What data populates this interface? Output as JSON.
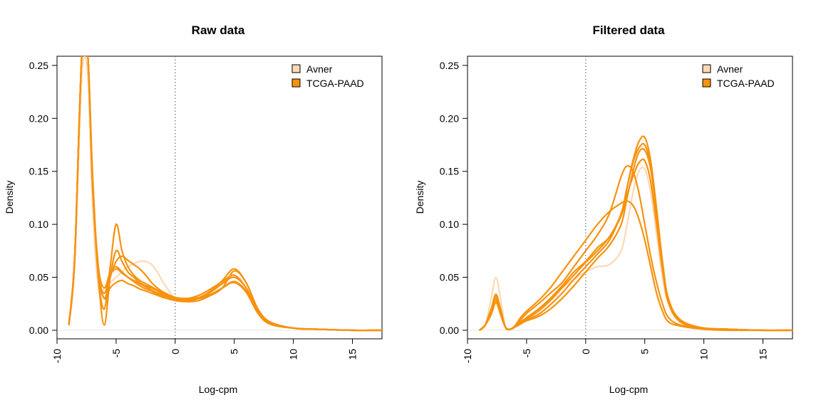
{
  "chart_data": [
    {
      "type": "line",
      "title": "Raw data",
      "xlabel": "Log-cpm",
      "ylabel": "Density",
      "xlim": [
        -10,
        17.5
      ],
      "ylim": [
        0,
        0.26
      ],
      "xticks": [
        -10,
        -5,
        0,
        5,
        10,
        15
      ],
      "yticks": [
        0.0,
        0.05,
        0.1,
        0.15,
        0.2,
        0.25
      ],
      "ytick_labels": [
        "0.00",
        "0.05",
        "0.10",
        "0.15",
        "0.20",
        "0.25"
      ],
      "xtick_labels": [
        "-10",
        "-5",
        "0",
        "5",
        "10",
        "15"
      ],
      "vline_x": 0,
      "legend": [
        {
          "name": "Avner",
          "color": "#FDD9B5"
        },
        {
          "name": "TCGA-PAAD",
          "color": "#F7920F"
        }
      ],
      "legend_position": "top-right",
      "series": [
        {
          "name": "Avner",
          "color": "#FDD9B5",
          "x": [
            -9,
            -8.5,
            -7.9,
            -7.4,
            -7,
            -6.5,
            -6,
            -5.5,
            -5,
            -4.5,
            -4,
            -3.5,
            -3,
            -2.5,
            -2,
            -1.5,
            -1,
            0,
            1,
            2,
            3,
            4,
            5,
            6,
            7,
            8,
            10,
            12,
            15,
            17.5
          ],
          "y": [
            0.005,
            0.06,
            0.24,
            0.24,
            0.12,
            0.04,
            0.04,
            0.045,
            0.05,
            0.055,
            0.06,
            0.063,
            0.065,
            0.065,
            0.062,
            0.055,
            0.045,
            0.03,
            0.028,
            0.03,
            0.038,
            0.045,
            0.05,
            0.04,
            0.018,
            0.007,
            0.002,
            0.001,
            0.0,
            0.0
          ]
        },
        {
          "name": "TCGA-PAAD",
          "color": "#F7920F",
          "x": [
            -9,
            -8.5,
            -7.9,
            -7.4,
            -7,
            -6.5,
            -6,
            -5.5,
            -5,
            -4.5,
            -4,
            -3.5,
            -3,
            -2.5,
            -2,
            -1.5,
            -1,
            0,
            1,
            2,
            3,
            4,
            5,
            6,
            7,
            8,
            10,
            12,
            15,
            17.5
          ],
          "y": [
            0.005,
            0.07,
            0.26,
            0.26,
            0.15,
            0.05,
            0.005,
            0.05,
            0.075,
            0.065,
            0.055,
            0.05,
            0.045,
            0.042,
            0.04,
            0.037,
            0.034,
            0.03,
            0.029,
            0.031,
            0.037,
            0.047,
            0.058,
            0.045,
            0.02,
            0.008,
            0.002,
            0.001,
            0.0,
            0.0
          ]
        },
        {
          "name": "TCGA-PAAD",
          "color": "#F7920F",
          "x": [
            -9,
            -8.5,
            -7.9,
            -7.4,
            -7,
            -6.5,
            -6,
            -5.5,
            -5,
            -4.5,
            -4,
            -3.5,
            -3,
            -2.5,
            -2,
            -1.5,
            -1,
            0,
            1,
            2,
            3,
            4,
            5,
            6,
            7,
            8,
            10,
            12,
            15,
            17.5
          ],
          "y": [
            0.005,
            0.07,
            0.26,
            0.26,
            0.14,
            0.05,
            0.02,
            0.06,
            0.1,
            0.075,
            0.06,
            0.052,
            0.047,
            0.044,
            0.041,
            0.038,
            0.035,
            0.031,
            0.03,
            0.033,
            0.039,
            0.046,
            0.052,
            0.04,
            0.018,
            0.007,
            0.002,
            0.001,
            0.0,
            0.0
          ]
        },
        {
          "name": "TCGA-PAAD",
          "color": "#F7920F",
          "x": [
            -9,
            -8.5,
            -7.9,
            -7.4,
            -7,
            -6.5,
            -6,
            -5.5,
            -5,
            -4.5,
            -4,
            -3.5,
            -3,
            -2.5,
            -2,
            -1.5,
            -1,
            0,
            1,
            2,
            3,
            4,
            5,
            6,
            7,
            8,
            10,
            12,
            15,
            17.5
          ],
          "y": [
            0.005,
            0.07,
            0.26,
            0.26,
            0.14,
            0.06,
            0.04,
            0.055,
            0.06,
            0.055,
            0.05,
            0.046,
            0.042,
            0.039,
            0.037,
            0.034,
            0.032,
            0.029,
            0.028,
            0.03,
            0.036,
            0.044,
            0.05,
            0.04,
            0.018,
            0.007,
            0.002,
            0.001,
            0.0,
            0.0
          ]
        },
        {
          "name": "TCGA-PAAD",
          "color": "#F7920F",
          "x": [
            -9,
            -8.5,
            -7.9,
            -7.4,
            -7,
            -6.5,
            -6,
            -5.5,
            -5,
            -4.5,
            -4,
            -3.5,
            -3,
            -2.5,
            -2,
            -1.5,
            -1,
            0,
            1,
            2,
            3,
            4,
            5,
            6,
            7,
            8,
            10,
            12,
            15,
            17.5
          ],
          "y": [
            0.005,
            0.07,
            0.26,
            0.26,
            0.14,
            0.055,
            0.03,
            0.04,
            0.045,
            0.047,
            0.044,
            0.042,
            0.039,
            0.037,
            0.035,
            0.033,
            0.031,
            0.028,
            0.027,
            0.028,
            0.033,
            0.04,
            0.045,
            0.036,
            0.016,
            0.006,
            0.002,
            0.001,
            0.0,
            0.0
          ]
        },
        {
          "name": "TCGA-PAAD",
          "color": "#F7920F",
          "x": [
            -9,
            -8.5,
            -7.9,
            -7.4,
            -7,
            -6.5,
            -6,
            -5.5,
            -5,
            -4.5,
            -4,
            -3.5,
            -3,
            -2.5,
            -2,
            -1.5,
            -1,
            0,
            1,
            2,
            3,
            4,
            5,
            6,
            7,
            8,
            10,
            12,
            15,
            17.5
          ],
          "y": [
            0.005,
            0.07,
            0.26,
            0.26,
            0.14,
            0.06,
            0.03,
            0.05,
            0.065,
            0.07,
            0.066,
            0.062,
            0.058,
            0.052,
            0.045,
            0.04,
            0.036,
            0.031,
            0.03,
            0.031,
            0.034,
            0.04,
            0.046,
            0.037,
            0.017,
            0.006,
            0.002,
            0.001,
            0.0,
            0.0
          ]
        },
        {
          "name": "TCGA-PAAD",
          "color": "#F7920F",
          "x": [
            -9,
            -8.5,
            -7.9,
            -7.4,
            -7,
            -6.5,
            -6,
            -5.5,
            -5,
            -4.5,
            -4,
            -3.5,
            -3,
            -2.5,
            -2,
            -1.5,
            -1,
            0,
            1,
            2,
            3,
            4,
            5,
            6,
            7,
            8,
            10,
            12,
            15,
            17.5
          ],
          "y": [
            0.005,
            0.07,
            0.26,
            0.26,
            0.14,
            0.055,
            0.035,
            0.052,
            0.058,
            0.054,
            0.05,
            0.047,
            0.044,
            0.041,
            0.038,
            0.035,
            0.033,
            0.03,
            0.029,
            0.03,
            0.033,
            0.04,
            0.056,
            0.045,
            0.02,
            0.008,
            0.002,
            0.001,
            0.0,
            0.0
          ]
        }
      ]
    },
    {
      "type": "line",
      "title": "Filtered data",
      "xlabel": "Log-cpm",
      "ylabel": "Density",
      "xlim": [
        -10,
        17.5
      ],
      "ylim": [
        0,
        0.26
      ],
      "xticks": [
        -10,
        -5,
        0,
        5,
        10,
        15
      ],
      "yticks": [
        0.0,
        0.05,
        0.1,
        0.15,
        0.2,
        0.25
      ],
      "ytick_labels": [
        "0.00",
        "0.05",
        "0.10",
        "0.15",
        "0.20",
        "0.25"
      ],
      "xtick_labels": [
        "-10",
        "-5",
        "0",
        "5",
        "10",
        "15"
      ],
      "vline_x": 0,
      "legend": [
        {
          "name": "Avner",
          "color": "#FDD9B5"
        },
        {
          "name": "TCGA-PAAD",
          "color": "#F7920F"
        }
      ],
      "legend_position": "top-right",
      "series": [
        {
          "name": "Avner",
          "color": "#FDD9B5",
          "x": [
            -9,
            -8.5,
            -8,
            -7.6,
            -7.2,
            -6.8,
            -6.4,
            -6,
            -5.5,
            -5,
            -4,
            -3,
            -2,
            -1,
            0,
            1,
            2,
            3,
            3.5,
            4,
            4.5,
            5,
            5.5,
            6,
            6.5,
            7,
            8,
            10,
            12,
            15,
            17.5
          ],
          "y": [
            0.0,
            0.005,
            0.03,
            0.05,
            0.03,
            0.003,
            0.001,
            0.003,
            0.008,
            0.012,
            0.02,
            0.03,
            0.04,
            0.048,
            0.055,
            0.06,
            0.062,
            0.075,
            0.1,
            0.13,
            0.15,
            0.152,
            0.13,
            0.09,
            0.05,
            0.025,
            0.008,
            0.002,
            0.001,
            0.0,
            0.0
          ]
        },
        {
          "name": "TCGA-PAAD",
          "color": "#F7920F",
          "x": [
            -9,
            -8.5,
            -8,
            -7.6,
            -7.2,
            -6.8,
            -6.4,
            -6,
            -5.5,
            -5,
            -4,
            -3,
            -2,
            -1,
            0,
            1,
            2,
            3,
            3.5,
            4,
            4.5,
            5,
            5.5,
            6,
            6.5,
            7,
            8,
            10,
            12,
            15,
            17.5
          ],
          "y": [
            0.0,
            0.005,
            0.02,
            0.034,
            0.02,
            0.003,
            0.001,
            0.003,
            0.008,
            0.012,
            0.02,
            0.03,
            0.042,
            0.055,
            0.065,
            0.078,
            0.088,
            0.11,
            0.135,
            0.16,
            0.178,
            0.182,
            0.16,
            0.115,
            0.065,
            0.03,
            0.01,
            0.002,
            0.001,
            0.0,
            0.0
          ]
        },
        {
          "name": "TCGA-PAAD",
          "color": "#F7920F",
          "x": [
            -9,
            -8.5,
            -8,
            -7.6,
            -7.2,
            -6.8,
            -6.4,
            -6,
            -5.5,
            -5,
            -4,
            -3,
            -2,
            -1,
            0,
            1,
            2,
            3,
            3.5,
            4,
            4.5,
            5,
            5.5,
            6,
            6.5,
            7,
            8,
            10,
            12,
            15,
            17.5
          ],
          "y": [
            0.0,
            0.005,
            0.015,
            0.026,
            0.015,
            0.003,
            0.001,
            0.004,
            0.01,
            0.016,
            0.025,
            0.035,
            0.045,
            0.06,
            0.075,
            0.09,
            0.11,
            0.145,
            0.155,
            0.15,
            0.13,
            0.1,
            0.07,
            0.045,
            0.025,
            0.012,
            0.005,
            0.002,
            0.001,
            0.0,
            0.0
          ]
        },
        {
          "name": "TCGA-PAAD",
          "color": "#F7920F",
          "x": [
            -9,
            -8.5,
            -8,
            -7.6,
            -7.2,
            -6.8,
            -6.4,
            -6,
            -5.5,
            -5,
            -4,
            -3,
            -2,
            -1,
            0,
            1,
            2,
            3,
            3.5,
            4,
            4.5,
            5,
            5.5,
            6,
            6.5,
            7,
            8,
            10,
            12,
            15,
            17.5
          ],
          "y": [
            0.0,
            0.005,
            0.015,
            0.028,
            0.015,
            0.003,
            0.001,
            0.004,
            0.012,
            0.018,
            0.028,
            0.04,
            0.055,
            0.07,
            0.085,
            0.1,
            0.112,
            0.12,
            0.122,
            0.118,
            0.105,
            0.085,
            0.06,
            0.035,
            0.018,
            0.008,
            0.004,
            0.001,
            0.0,
            0.0,
            0.0
          ]
        },
        {
          "name": "TCGA-PAAD",
          "color": "#F7920F",
          "x": [
            -9,
            -8.5,
            -8,
            -7.6,
            -7.2,
            -6.8,
            -6.4,
            -6,
            -5.5,
            -5,
            -4,
            -3,
            -2,
            -1,
            0,
            1,
            2,
            3,
            3.5,
            4,
            4.5,
            5,
            5.5,
            6,
            6.5,
            7,
            8,
            10,
            12,
            15,
            17.5
          ],
          "y": [
            0.0,
            0.005,
            0.02,
            0.03,
            0.02,
            0.003,
            0.001,
            0.003,
            0.006,
            0.01,
            0.015,
            0.024,
            0.035,
            0.048,
            0.06,
            0.072,
            0.085,
            0.11,
            0.135,
            0.158,
            0.172,
            0.175,
            0.155,
            0.11,
            0.062,
            0.028,
            0.009,
            0.002,
            0.001,
            0.0,
            0.0
          ]
        },
        {
          "name": "TCGA-PAAD",
          "color": "#F7920F",
          "x": [
            -9,
            -8.5,
            -8,
            -7.6,
            -7.2,
            -6.8,
            -6.4,
            -6,
            -5.5,
            -5,
            -4,
            -3,
            -2,
            -1,
            0,
            1,
            2,
            3,
            3.5,
            4,
            4.5,
            5,
            5.5,
            6,
            6.5,
            7,
            8,
            10,
            12,
            15,
            17.5
          ],
          "y": [
            0.0,
            0.005,
            0.018,
            0.03,
            0.018,
            0.003,
            0.001,
            0.003,
            0.007,
            0.011,
            0.018,
            0.028,
            0.04,
            0.052,
            0.064,
            0.075,
            0.088,
            0.108,
            0.128,
            0.145,
            0.158,
            0.16,
            0.14,
            0.1,
            0.057,
            0.026,
            0.008,
            0.002,
            0.001,
            0.0,
            0.0
          ]
        },
        {
          "name": "TCGA-PAAD",
          "color": "#F7920F",
          "x": [
            -9,
            -8.5,
            -8,
            -7.6,
            -7.2,
            -6.8,
            -6.4,
            -6,
            -5.5,
            -5,
            -4,
            -3,
            -2,
            -1,
            0,
            1,
            2,
            3,
            3.5,
            4,
            4.5,
            5,
            5.5,
            6,
            6.5,
            7,
            8,
            10,
            12,
            15,
            17.5
          ],
          "y": [
            0.0,
            0.005,
            0.02,
            0.032,
            0.02,
            0.003,
            0.001,
            0.003,
            0.006,
            0.009,
            0.013,
            0.02,
            0.03,
            0.042,
            0.055,
            0.068,
            0.08,
            0.1,
            0.125,
            0.15,
            0.168,
            0.17,
            0.152,
            0.11,
            0.062,
            0.028,
            0.009,
            0.002,
            0.001,
            0.0,
            0.0
          ]
        }
      ]
    }
  ]
}
